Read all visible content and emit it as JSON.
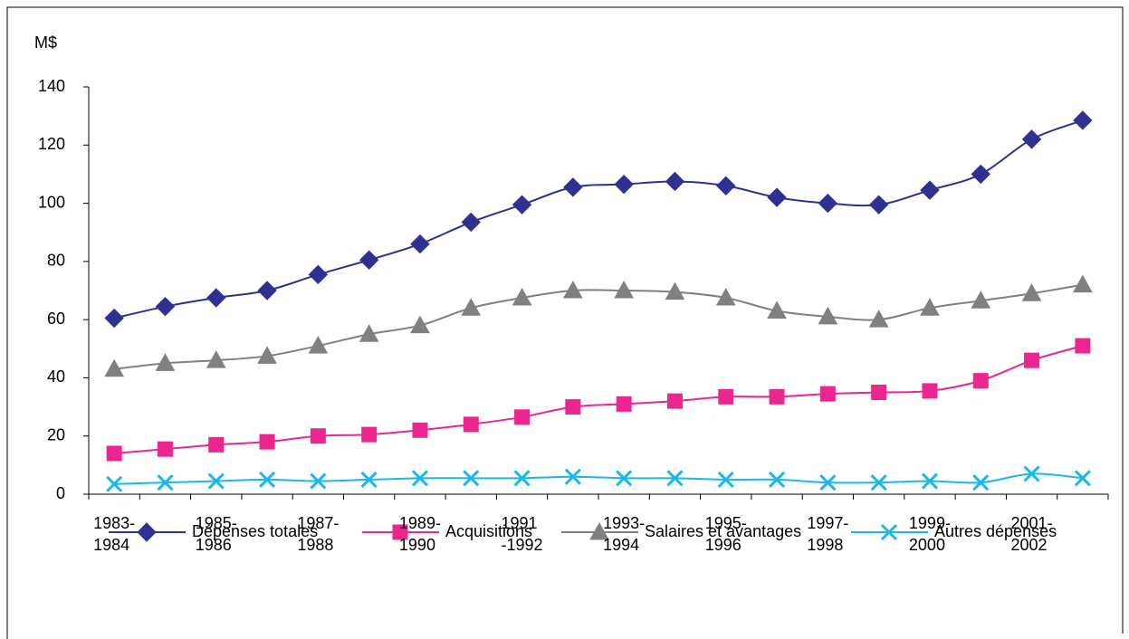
{
  "chart_data": {
    "type": "line",
    "y_label": "M$",
    "categories": [
      "1983-\n1984",
      null,
      "1985-\n1986",
      null,
      "1987-\n1988",
      null,
      "1989-\n1990",
      null,
      "1991\n-1992",
      null,
      "1993-\n1994",
      null,
      "1995-\n1996",
      null,
      "1997-\n1998",
      null,
      "1999-\n2000",
      null,
      "2001-\n2002",
      null
    ],
    "series": [
      {
        "name": "Dépenses totales",
        "color": "#2e3192",
        "marker": "diamond",
        "values": [
          60.5,
          64.5,
          67.5,
          70,
          75.5,
          80.5,
          86,
          93.5,
          99.5,
          105.5,
          106.5,
          107.5,
          106,
          102,
          100,
          99.5,
          104.5,
          110,
          122,
          128.5
        ]
      },
      {
        "name": "Acquisitions",
        "color": "#ec268f",
        "marker": "square",
        "values": [
          14,
          15.5,
          17,
          18,
          20,
          20.5,
          22,
          24,
          26.5,
          30,
          31,
          32,
          33.5,
          33.5,
          34.5,
          35,
          35.5,
          39,
          46,
          51
        ]
      },
      {
        "name": "Salaires et avantages",
        "color": "#808080",
        "marker": "triangle",
        "values": [
          43,
          45,
          46,
          47.5,
          51,
          55,
          58,
          64,
          67.5,
          70,
          70,
          69.5,
          67.5,
          63,
          61,
          60,
          64,
          66.5,
          69,
          72
        ]
      },
      {
        "name": "Autres dépenses",
        "color": "#1ab7ea",
        "marker": "x",
        "values": [
          3.5,
          4,
          4.5,
          5,
          4.5,
          5,
          5.5,
          5.5,
          5.5,
          6,
          5.5,
          5.5,
          5,
          5,
          4,
          4,
          4.5,
          4,
          7,
          5.5
        ]
      }
    ],
    "ylim": [
      0,
      140
    ],
    "yticks": [
      0,
      20,
      40,
      60,
      80,
      100,
      120,
      140
    ],
    "grid": false,
    "legend": "bottom"
  }
}
